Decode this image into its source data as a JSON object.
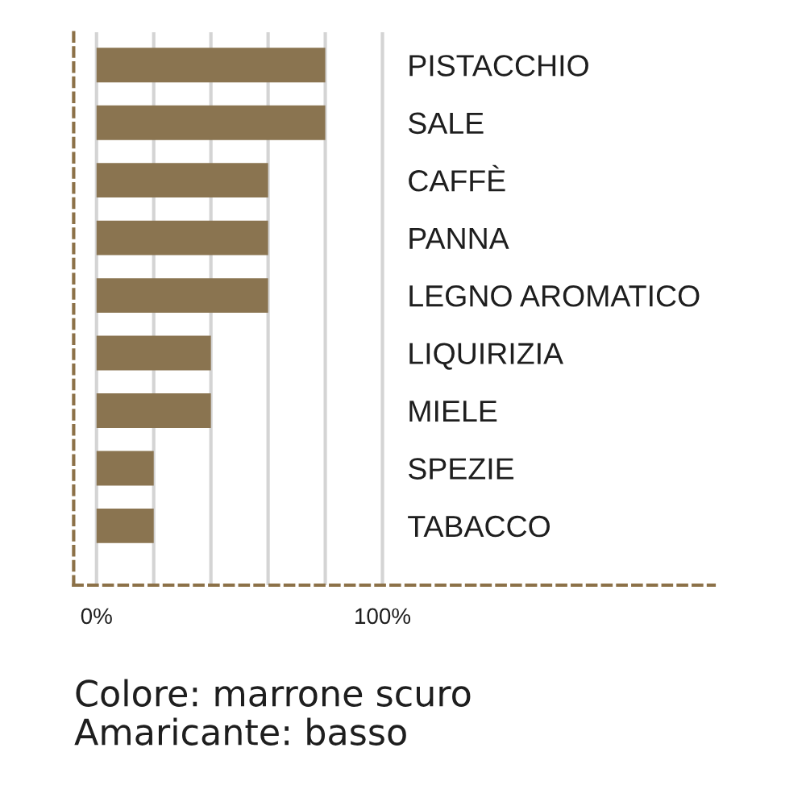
{
  "chart_data": {
    "type": "bar",
    "orientation": "horizontal",
    "categories": [
      "PISTACCHIO",
      "SALE",
      "CAFFÈ",
      "PANNA",
      "LEGNO AROMATICO",
      "LIQUIRIZIA",
      "MIELE",
      "SPEZIE",
      "TABACCO"
    ],
    "values": [
      80,
      80,
      60,
      60,
      60,
      40,
      40,
      20,
      20
    ],
    "color": "#8a7450",
    "xlim": [
      -8,
      216
    ],
    "xticks": [
      {
        "value": 0,
        "label": "0%"
      },
      {
        "value": 20,
        "label": null
      },
      {
        "value": 40,
        "label": null
      },
      {
        "value": 60,
        "label": null
      },
      {
        "value": 80,
        "label": null
      },
      {
        "value": 100,
        "label": "100%"
      }
    ],
    "grid": "x",
    "annotations": [
      "Colore: marrone scuro",
      "Amaricante: basso"
    ]
  }
}
